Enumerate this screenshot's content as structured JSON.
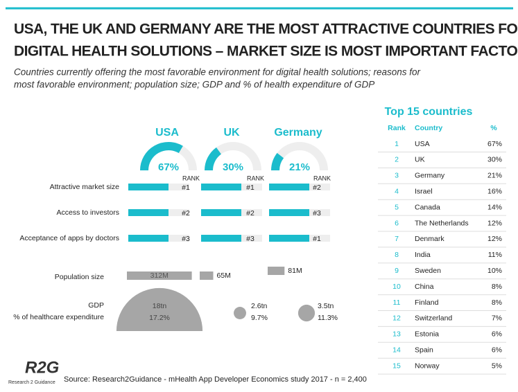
{
  "header": {
    "title": [
      "USA, THE UK AND GERMANY ARE THE MOST ATTRACTIVE COUNTRIES FOR",
      "DIGITAL HEALTH SOLUTIONS – MARKET SIZE IS MOST IMPORTANT FACTOR"
    ],
    "subtitle": [
      "Countries currently offering the most favorable environment for digital health solutions; reasons for",
      "most favorable environment; population size; GDP and % of health expenditure of GDP"
    ]
  },
  "chart_data": {
    "type": "infographic",
    "factors": [
      "Attractive market size",
      "Access to investors",
      "Acceptance of apps by doctors"
    ],
    "rank_label": "RANK",
    "countries": [
      "USA",
      "UK",
      "Germany"
    ],
    "share": {
      "values": [
        67,
        30,
        21
      ],
      "value_labels": [
        "67%",
        "30%",
        "21%"
      ]
    },
    "ranks": [
      [
        "#1",
        "#2",
        "#3"
      ],
      [
        "#1",
        "#2",
        "#3"
      ],
      [
        "#2",
        "#3",
        "#1"
      ]
    ],
    "population_label": "Population size",
    "population": {
      "values": [
        312,
        65,
        81
      ],
      "value_labels": [
        "312M",
        "65M",
        "81M"
      ]
    },
    "gdp_label": "GDP",
    "health_label": "% of healthcare expenditure",
    "gdp": {
      "values": [
        18,
        2.6,
        3.5
      ],
      "value_labels": [
        "18tn",
        "2.6tn",
        "3.5tn"
      ]
    },
    "health": {
      "values": [
        17.2,
        9.7,
        11.3
      ],
      "value_labels": [
        "17.2%",
        "9.7%",
        "11.3%"
      ]
    },
    "color": "#1bbccc"
  },
  "table": {
    "title": "Top 15 countries",
    "headers": [
      "Rank",
      "Country",
      "%"
    ],
    "rows": [
      [
        "1",
        "USA",
        "67%"
      ],
      [
        "2",
        "UK",
        "30%"
      ],
      [
        "3",
        "Germany",
        "21%"
      ],
      [
        "4",
        "Israel",
        "16%"
      ],
      [
        "5",
        "Canada",
        "14%"
      ],
      [
        "6",
        "The Netherlands",
        "12%"
      ],
      [
        "7",
        "Denmark",
        "12%"
      ],
      [
        "8",
        "India",
        "11%"
      ],
      [
        "9",
        "Sweden",
        "10%"
      ],
      [
        "10",
        "China",
        "8%"
      ],
      [
        "11",
        "Finland",
        "8%"
      ],
      [
        "12",
        "Switzerland",
        "7%"
      ],
      [
        "13",
        "Estonia",
        "6%"
      ],
      [
        "14",
        "Spain",
        "6%"
      ],
      [
        "15",
        "Norway",
        "5%"
      ]
    ]
  },
  "footer": {
    "source": "Source: Research2Guidance - mHealth App Developer Economics study 2017 - n = 2,400",
    "logo": "R2G",
    "logo_sub": "Research 2 Guidance"
  }
}
